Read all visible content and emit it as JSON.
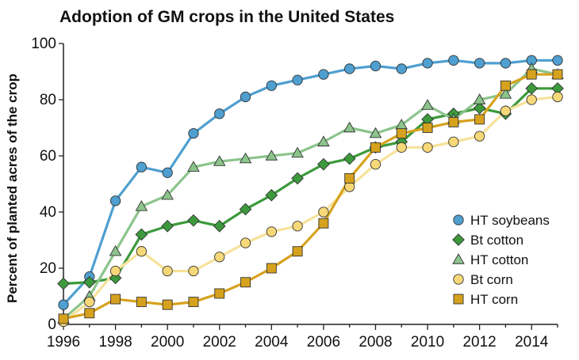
{
  "chart_data": {
    "type": "line",
    "title": "Adoption of GM crops in the United States",
    "xlabel": "",
    "ylabel": "Percent of planted acres of the crop",
    "xlim": [
      1996,
      2015
    ],
    "ylim": [
      0,
      100
    ],
    "x_ticks": [
      1996,
      1998,
      2000,
      2002,
      2004,
      2006,
      2008,
      2010,
      2012,
      2014
    ],
    "y_ticks": [
      0,
      20,
      40,
      60,
      80,
      100
    ],
    "grid": false,
    "legend_position": "right",
    "x": [
      1996,
      1997,
      1998,
      1999,
      2000,
      2001,
      2002,
      2003,
      2004,
      2005,
      2006,
      2007,
      2008,
      2009,
      2010,
      2011,
      2012,
      2013,
      2014,
      2015
    ],
    "series": [
      {
        "name": "HT soybeans",
        "marker": "circle",
        "line_color": "#4f9fd0",
        "marker_color": "#4f9fd0",
        "x": [
          1996,
          1997,
          1998,
          1999,
          2000,
          2001,
          2002,
          2003,
          2004,
          2005,
          2006,
          2007,
          2008,
          2009,
          2010,
          2011,
          2012,
          2013,
          2014,
          2015
        ],
        "values": [
          7,
          17,
          44,
          56,
          54,
          68,
          75,
          81,
          85,
          87,
          89,
          91,
          92,
          91,
          93,
          94,
          93,
          93,
          94,
          94
        ]
      },
      {
        "name": "Bt cotton",
        "marker": "diamond",
        "line_color": "#3c9a3c",
        "marker_color": "#3c9a3c",
        "x": [
          1996,
          1997,
          1998,
          1999,
          2000,
          2001,
          2002,
          2003,
          2004,
          2005,
          2006,
          2007,
          2008,
          2009,
          2010,
          2011,
          2012,
          2013,
          2014,
          2015
        ],
        "values": [
          14.5,
          15,
          16.5,
          32,
          35,
          37,
          35,
          41,
          46,
          52,
          57,
          59,
          63,
          65,
          73,
          75,
          77,
          75,
          84,
          84
        ]
      },
      {
        "name": "HT cotton",
        "marker": "triangle",
        "line_color": "#8cc48c",
        "marker_color": "#8cc48c",
        "x": [
          1996,
          1997,
          1998,
          1999,
          2000,
          2001,
          2002,
          2003,
          2004,
          2005,
          2006,
          2007,
          2008,
          2009,
          2010,
          2011,
          2012,
          2013,
          2014,
          2015
        ],
        "values": [
          2,
          10,
          26,
          42,
          46,
          56,
          58,
          59,
          60,
          61,
          65,
          70,
          68,
          71,
          78,
          73,
          80,
          82,
          91,
          89
        ]
      },
      {
        "name": "Bt corn",
        "marker": "circle",
        "line_color": "#f7e29a",
        "marker_color": "#f7d878",
        "x": [
          1996,
          1997,
          1998,
          1999,
          2000,
          2001,
          2002,
          2003,
          2004,
          2005,
          2006,
          2007,
          2008,
          2009,
          2010,
          2011,
          2012,
          2013,
          2014,
          2015
        ],
        "values": [
          1,
          8,
          19,
          26,
          19,
          19,
          24,
          29,
          33,
          35,
          40,
          49,
          57,
          63,
          63,
          65,
          67,
          76,
          80,
          81
        ]
      },
      {
        "name": "HT corn",
        "marker": "square",
        "line_color": "#d6a21e",
        "marker_color": "#d6a21e",
        "x": [
          1996,
          1997,
          1998,
          1999,
          2000,
          2001,
          2002,
          2003,
          2004,
          2005,
          2006,
          2007,
          2008,
          2009,
          2010,
          2011,
          2012,
          2013,
          2014,
          2015
        ],
        "values": [
          2,
          4,
          9,
          8,
          7,
          8,
          11,
          15,
          20,
          26,
          36,
          52,
          63,
          68,
          70,
          72,
          73,
          85,
          89,
          89
        ]
      }
    ],
    "legend_order": [
      "HT soybeans",
      "Bt cotton",
      "HT cotton",
      "Bt corn",
      "HT corn"
    ]
  }
}
